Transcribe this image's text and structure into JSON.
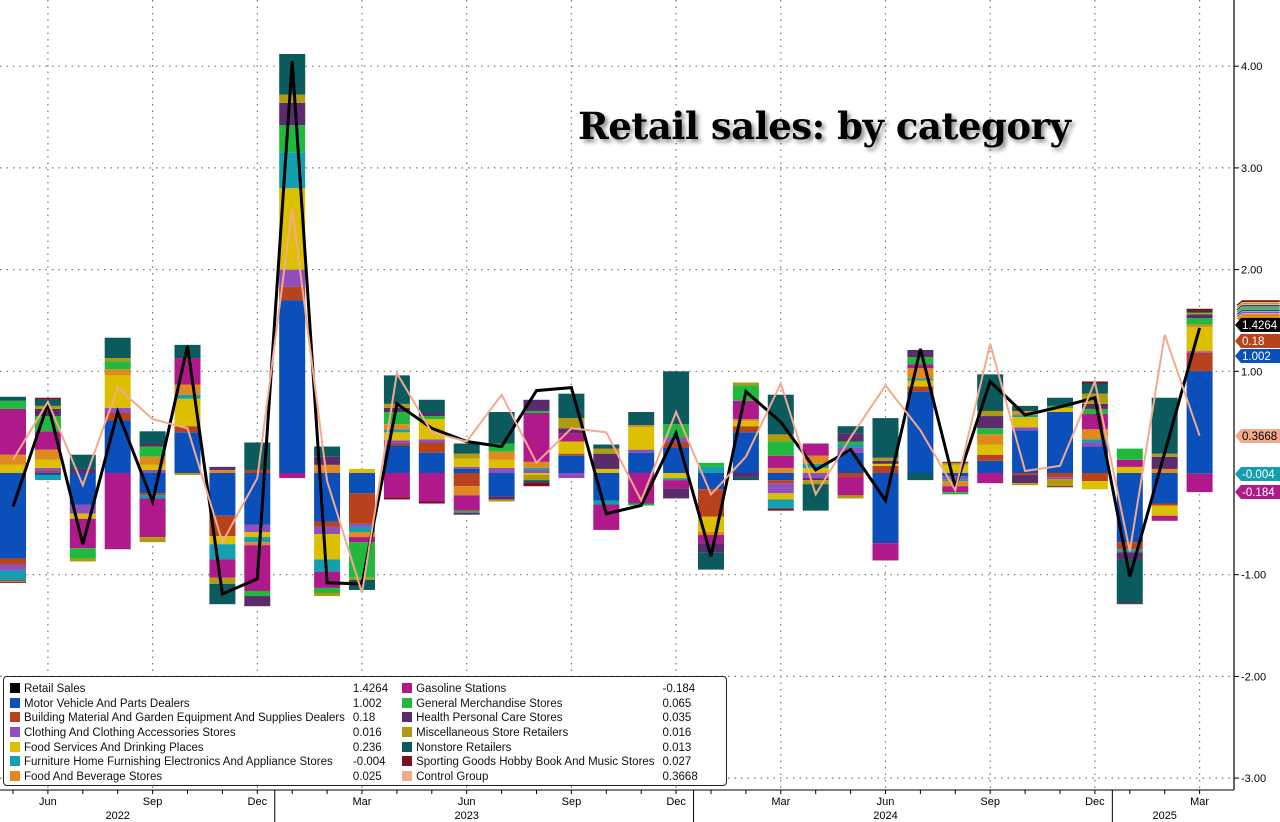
{
  "chart_data": {
    "type": "bar",
    "title": "Retail sales: by category",
    "x": [
      "2022-05",
      "2022-06",
      "2022-07",
      "2022-08",
      "2022-09",
      "2022-10",
      "2022-11",
      "2022-12",
      "2023-01",
      "2023-02",
      "2023-03",
      "2023-04",
      "2023-05",
      "2023-06",
      "2023-07",
      "2023-08",
      "2023-09",
      "2023-10",
      "2023-11",
      "2023-12",
      "2024-01",
      "2024-02",
      "2024-03",
      "2024-04",
      "2024-05",
      "2024-06",
      "2024-07",
      "2024-08",
      "2024-09",
      "2024-10",
      "2024-11",
      "2024-12",
      "2025-01",
      "2025-02",
      "2025-03"
    ],
    "x_tick_labels": [
      {
        "x": "2022-06",
        "label": "Jun"
      },
      {
        "x": "2022-09",
        "label": "Sep"
      },
      {
        "x": "2022-12",
        "label": "Dec"
      },
      {
        "x": "2023-03",
        "label": "Mar"
      },
      {
        "x": "2023-06",
        "label": "Jun"
      },
      {
        "x": "2023-09",
        "label": "Sep"
      },
      {
        "x": "2023-12",
        "label": "Dec"
      },
      {
        "x": "2024-03",
        "label": "Mar"
      },
      {
        "x": "2024-06",
        "label": "Jun"
      },
      {
        "x": "2024-09",
        "label": "Sep"
      },
      {
        "x": "2024-12",
        "label": "Dec"
      },
      {
        "x": "2025-03",
        "label": "Mar"
      }
    ],
    "year_labels": [
      {
        "x": "2022-08",
        "label": "2022"
      },
      {
        "x": "2023-06",
        "label": "2023"
      },
      {
        "x": "2024-06",
        "label": "2024"
      },
      {
        "x": "2025-02",
        "label": "2025"
      }
    ],
    "y_ticks": [
      {
        "v": 4,
        "label": "4.00"
      },
      {
        "v": 3,
        "label": "3.00"
      },
      {
        "v": 2,
        "label": "2.00"
      },
      {
        "v": 1,
        "label": "1.00"
      },
      {
        "v": -1,
        "label": "-1.00"
      },
      {
        "v": -2,
        "label": "-2.00"
      },
      {
        "v": -3,
        "label": "-3.00"
      }
    ],
    "ylim": [
      -3.2,
      4.6
    ],
    "y_axis_side": "right",
    "grid": true,
    "legend_position": "bottom-left",
    "stacked": true,
    "stack_series": [
      {
        "name": "Motor Vehicle And Parts Dealers",
        "color": "#0a4fba"
      },
      {
        "name": "Building Material And Garden Equipment And Supplies Dealers",
        "color": "#b8421c"
      },
      {
        "name": "Clothing And Clothing Accessories Stores",
        "color": "#8f4fbd"
      },
      {
        "name": "Food Services And Drinking Places",
        "color": "#dcc000"
      },
      {
        "name": "Furniture Home Furnishing Electronics And Appliance Stores",
        "color": "#12a0b0"
      },
      {
        "name": "Food And Beverage Stores",
        "color": "#e08a1e"
      },
      {
        "name": "Gasoline Stations",
        "color": "#b0198a"
      },
      {
        "name": "General Merchandise Stores",
        "color": "#22b83e"
      },
      {
        "name": "Health Personal Care Stores",
        "color": "#5a2c6e"
      },
      {
        "name": "Miscellaneous Store Retailers",
        "color": "#b09a10"
      },
      {
        "name": "Nonstore Retailers",
        "color": "#0b5a5e"
      },
      {
        "name": "Sporting Goods Hobby Book And Music Stores",
        "color": "#7a0f1f"
      }
    ],
    "stack_values_by_month": [
      [
        -0.84,
        -0.06,
        -0.06,
        0.08,
        -0.09,
        0.1,
        0.45,
        0.08,
        -0.01,
        -0.01,
        0.04,
        -0.01
      ],
      [
        -0.02,
        0.02,
        0.03,
        0.08,
        -0.05,
        0.1,
        0.18,
        0.15,
        0.07,
        0.03,
        0.06,
        0.02
      ],
      [
        -0.31,
        0,
        -0.09,
        -0.05,
        0,
        0,
        -0.29,
        -0.1,
        0.04,
        -0.03,
        0.14,
        0
      ],
      [
        0.52,
        0.07,
        0.05,
        0.32,
        0,
        0.06,
        -0.75,
        0.08,
        0,
        0.03,
        0.2,
        0
      ],
      [
        -0.2,
        -0.02,
        0.03,
        0.05,
        -0.03,
        0.08,
        -0.38,
        0.1,
        0.03,
        -0.05,
        0.12,
        0
      ],
      [
        0.4,
        0.06,
        0,
        0.27,
        0.04,
        0.1,
        0.26,
        0,
        0,
        -0.02,
        0.13,
        0
      ],
      [
        -0.42,
        -0.2,
        0,
        -0.08,
        -0.15,
        0.03,
        -0.18,
        0,
        0.03,
        -0.06,
        -0.2,
        0
      ],
      [
        -0.51,
        0.03,
        -0.07,
        -0.05,
        -0.05,
        -0.03,
        -0.45,
        -0.05,
        -0.1,
        0,
        0.27,
        0
      ],
      [
        1.7,
        0.13,
        0.17,
        0.8,
        0.35,
        0,
        -0.05,
        0.27,
        0.22,
        0.08,
        0.4,
        0
      ],
      [
        -0.48,
        -0.05,
        -0.07,
        -0.25,
        -0.12,
        0.08,
        -0.16,
        -0.05,
        0.08,
        -0.03,
        0.1,
        0
      ],
      [
        -0.2,
        -0.3,
        -0.03,
        0.04,
        -0.05,
        -0.05,
        -0.05,
        -0.35,
        0,
        -0.02,
        -0.1,
        0
      ],
      [
        0.27,
        0.02,
        0.03,
        0.08,
        0.03,
        0.05,
        -0.24,
        0.12,
        0.04,
        0.04,
        0.28,
        -0.02
      ],
      [
        0.2,
        0.1,
        0.03,
        0.2,
        0,
        0,
        -0.28,
        0.03,
        0.03,
        0,
        0.13,
        -0.02
      ],
      [
        0.04,
        -0.13,
        0.02,
        0.08,
        0,
        -0.09,
        -0.15,
        -0.02,
        -0.02,
        0.05,
        0.1,
        0
      ],
      [
        -0.23,
        0,
        0.05,
        0.08,
        0,
        0.08,
        0,
        0.08,
        -0.03,
        -0.02,
        0.31,
        0
      ],
      [
        0,
        0,
        0.03,
        -0.02,
        0.02,
        0.06,
        0.48,
        0.02,
        0.11,
        -0.05,
        -0.02,
        -0.04
      ],
      [
        0.17,
        0.02,
        -0.05,
        0.12,
        0,
        0,
        0.08,
        0,
        0.05,
        0.1,
        0.24,
        0
      ],
      [
        -0.27,
        0,
        0,
        0.04,
        -0.04,
        0,
        -0.25,
        0,
        0.15,
        0.05,
        0.04,
        0
      ],
      [
        0.2,
        0,
        0.03,
        0.22,
        0,
        0.02,
        -0.3,
        -0.02,
        0,
        0,
        0.13,
        0
      ],
      [
        0.25,
        0.05,
        0.05,
        -0.05,
        -0.02,
        0,
        -0.08,
        0.13,
        -0.1,
        0,
        0.52,
        0
      ],
      [
        -0.16,
        -0.27,
        0,
        -0.15,
        0.06,
        -0.03,
        -0.08,
        0.04,
        -0.09,
        0,
        -0.17,
        0
      ],
      [
        0.4,
        0.06,
        0,
        0.05,
        0,
        0.02,
        0.18,
        0.15,
        -0.04,
        0.03,
        -0.03,
        0
      ],
      [
        -0.07,
        -0.03,
        -0.1,
        -0.06,
        -0.09,
        0.05,
        0.12,
        0.14,
        0,
        0.07,
        0.39,
        -0.02
      ],
      [
        0,
        0,
        -0.05,
        0.05,
        0.04,
        0.08,
        0.12,
        0,
        -0.02,
        -0.04,
        -0.26,
        0
      ],
      [
        0.2,
        -0.04,
        0.05,
        0,
        0.03,
        0,
        -0.18,
        0.03,
        0.08,
        -0.03,
        0.07,
        0
      ],
      [
        -0.69,
        0.07,
        0,
        0.02,
        0,
        0,
        -0.17,
        0,
        0.03,
        0.03,
        0.39,
        0
      ],
      [
        0.8,
        0.05,
        0,
        0.06,
        0.02,
        0.1,
        0.04,
        0.07,
        0.07,
        0,
        -0.07,
        0
      ],
      [
        -0.03,
        0,
        -0.03,
        0.08,
        -0.02,
        -0.05,
        -0.06,
        -0.02,
        0,
        0.02,
        0,
        0.01
      ],
      [
        0.12,
        0.06,
        0,
        0.1,
        0,
        0.1,
        -0.1,
        0.06,
        0.12,
        0.05,
        0.36,
        0
      ],
      [
        0.42,
        -0.02,
        0.03,
        0.1,
        0.02,
        0.04,
        0,
        0,
        -0.08,
        -0.02,
        0.05,
        0
      ],
      [
        0.6,
        -0.04,
        -0.02,
        0.04,
        0,
        0,
        0,
        0.02,
        0,
        -0.07,
        0.08,
        -0.01
      ],
      [
        0.26,
        -0.08,
        0.04,
        -0.08,
        0.03,
        0.1,
        0.15,
        0.05,
        0.05,
        0.1,
        0.1,
        0.02
      ],
      [
        -0.68,
        -0.07,
        0,
        0.06,
        -0.03,
        0,
        0.07,
        0.11,
        -0.07,
        0,
        -0.43,
        -0.01
      ],
      [
        -0.3,
        -0.02,
        0,
        -0.1,
        0,
        0.04,
        -0.05,
        0,
        0.12,
        0.03,
        0.55,
        0
      ],
      [
        1.002,
        0.18,
        0.016,
        0.236,
        -0.004,
        0.025,
        -0.184,
        0.065,
        0.035,
        0.016,
        0.013,
        0.027
      ]
    ],
    "line_series": [
      {
        "name": "Retail Sales",
        "color": "#000000",
        "values": [
          -0.33,
          0.68,
          -0.7,
          0.6,
          -0.28,
          1.25,
          -1.19,
          -1.04,
          4.05,
          -1.08,
          -1.09,
          0.68,
          0.44,
          0.31,
          0.26,
          0.81,
          0.84,
          -0.4,
          -0.32,
          0.39,
          -0.82,
          0.8,
          0.5,
          0.03,
          0.23,
          -0.27,
          1.22,
          -0.14,
          0.9,
          0.57,
          0.65,
          0.74,
          -1.02,
          0.2,
          1.4264
        ]
      },
      {
        "name": "Control Group",
        "color": "#f4a98e",
        "values": [
          0.13,
          0.7,
          -0.12,
          0.84,
          0.53,
          0.44,
          -0.68,
          -0.05,
          2.6,
          -0.08,
          -1.18,
          0.98,
          0.4,
          0.31,
          0.77,
          0.1,
          0.44,
          0.4,
          -0.27,
          0.6,
          -0.21,
          0.16,
          0.88,
          -0.21,
          0.35,
          0.86,
          0.42,
          -0.17,
          1.27,
          0.02,
          0.07,
          0.9,
          -0.77,
          1.36,
          0.3668
        ]
      }
    ],
    "last_value_tags": [
      {
        "label": "1.4264",
        "color": "#000000",
        "text_color": "#ffffff"
      },
      {
        "label": "0.18",
        "color": "#b8421c",
        "text_color": "#ffffff"
      },
      {
        "label": "1.002",
        "color": "#0a4fba",
        "text_color": "#ffffff"
      },
      {
        "label": "0.3668",
        "color": "#f4a98e",
        "text_color": "#000000"
      },
      {
        "label": "-0.004",
        "color": "#12a0b0",
        "text_color": "#ffffff"
      },
      {
        "label": "-0.184",
        "color": "#b0198a",
        "text_color": "#ffffff"
      }
    ]
  },
  "legend": {
    "left": [
      {
        "label": "Retail Sales",
        "value": "1.4264",
        "color": "#000000"
      },
      {
        "label": "Motor Vehicle And Parts Dealers",
        "value": "1.002",
        "color": "#0a4fba"
      },
      {
        "label": "Building Material And Garden Equipment And Supplies Dealers",
        "value": "0.18",
        "color": "#b8421c"
      },
      {
        "label": "Clothing And Clothing Accessories Stores",
        "value": "0.016",
        "color": "#8f4fbd"
      },
      {
        "label": "Food Services And Drinking Places",
        "value": "0.236",
        "color": "#dcc000"
      },
      {
        "label": "Furniture Home Furnishing Electronics And Appliance Stores",
        "value": "-0.004",
        "color": "#12a0b0"
      },
      {
        "label": "Food And Beverage Stores",
        "value": "0.025",
        "color": "#e08a1e"
      }
    ],
    "right": [
      {
        "label": "Gasoline Stations",
        "value": "-0.184",
        "color": "#b0198a"
      },
      {
        "label": "General Merchandise Stores",
        "value": "0.065",
        "color": "#22b83e"
      },
      {
        "label": "Health Personal Care Stores",
        "value": "0.035",
        "color": "#5a2c6e"
      },
      {
        "label": "Miscellaneous Store Retailers",
        "value": "0.016",
        "color": "#b09a10"
      },
      {
        "label": "Nonstore Retailers",
        "value": "0.013",
        "color": "#0b5a5e"
      },
      {
        "label": "Sporting Goods Hobby Book And Music Stores",
        "value": "0.027",
        "color": "#7a0f1f"
      },
      {
        "label": "Control Group",
        "value": "0.3668",
        "color": "#f4a98e"
      }
    ]
  }
}
